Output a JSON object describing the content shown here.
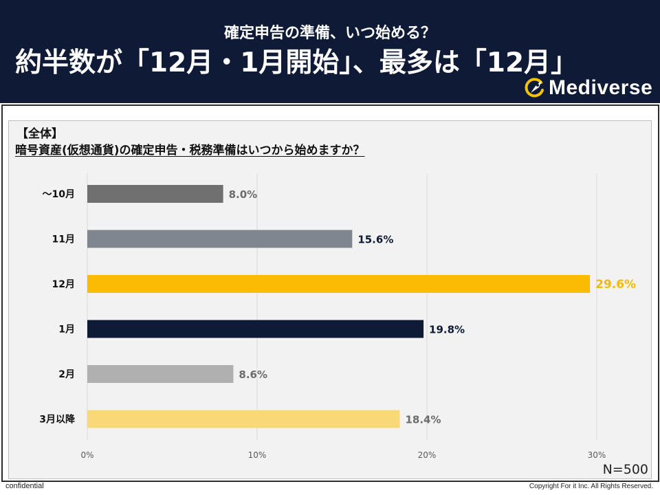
{
  "header": {
    "subtitle": "確定申告の準備、いつ始める？",
    "headline": "約半数が「12月・1月開始」、最多は「12月」",
    "logo_text": "Mediverse",
    "background": "#0f1b36",
    "logo_accent": "#f5c400"
  },
  "question": {
    "section": "【全体】",
    "text": "暗号資産(仮想通貨)の確定申告・税務準備はいつから始めますか？"
  },
  "chart_data": {
    "type": "bar",
    "orientation": "horizontal",
    "categories": [
      "〜10月",
      "11月",
      "12月",
      "1月",
      "2月",
      "3月以降"
    ],
    "values": [
      8.0,
      15.6,
      29.6,
      19.8,
      8.6,
      18.4
    ],
    "value_labels": [
      "8.0%",
      "15.6%",
      "29.6%",
      "19.8%",
      "8.6%",
      "18.4%"
    ],
    "colors": [
      "#707070",
      "#80868f",
      "#fbbb00",
      "#0f1b36",
      "#b0b0b0",
      "#f9d878"
    ],
    "label_colors": [
      "#6b6b6b",
      "#0f1b36",
      "#f5b800",
      "#0f1b36",
      "#6b6b6b",
      "#6b6b6b"
    ],
    "xlim": [
      0,
      30
    ],
    "xticks": [
      0,
      10,
      20,
      30
    ],
    "xtick_labels": [
      "0%",
      "10%",
      "20%",
      "30%"
    ],
    "grid": true,
    "sample_size": "N=500"
  },
  "footer": {
    "left": "confidential",
    "right": "Copyright For it Inc. All Rights Reserved."
  }
}
